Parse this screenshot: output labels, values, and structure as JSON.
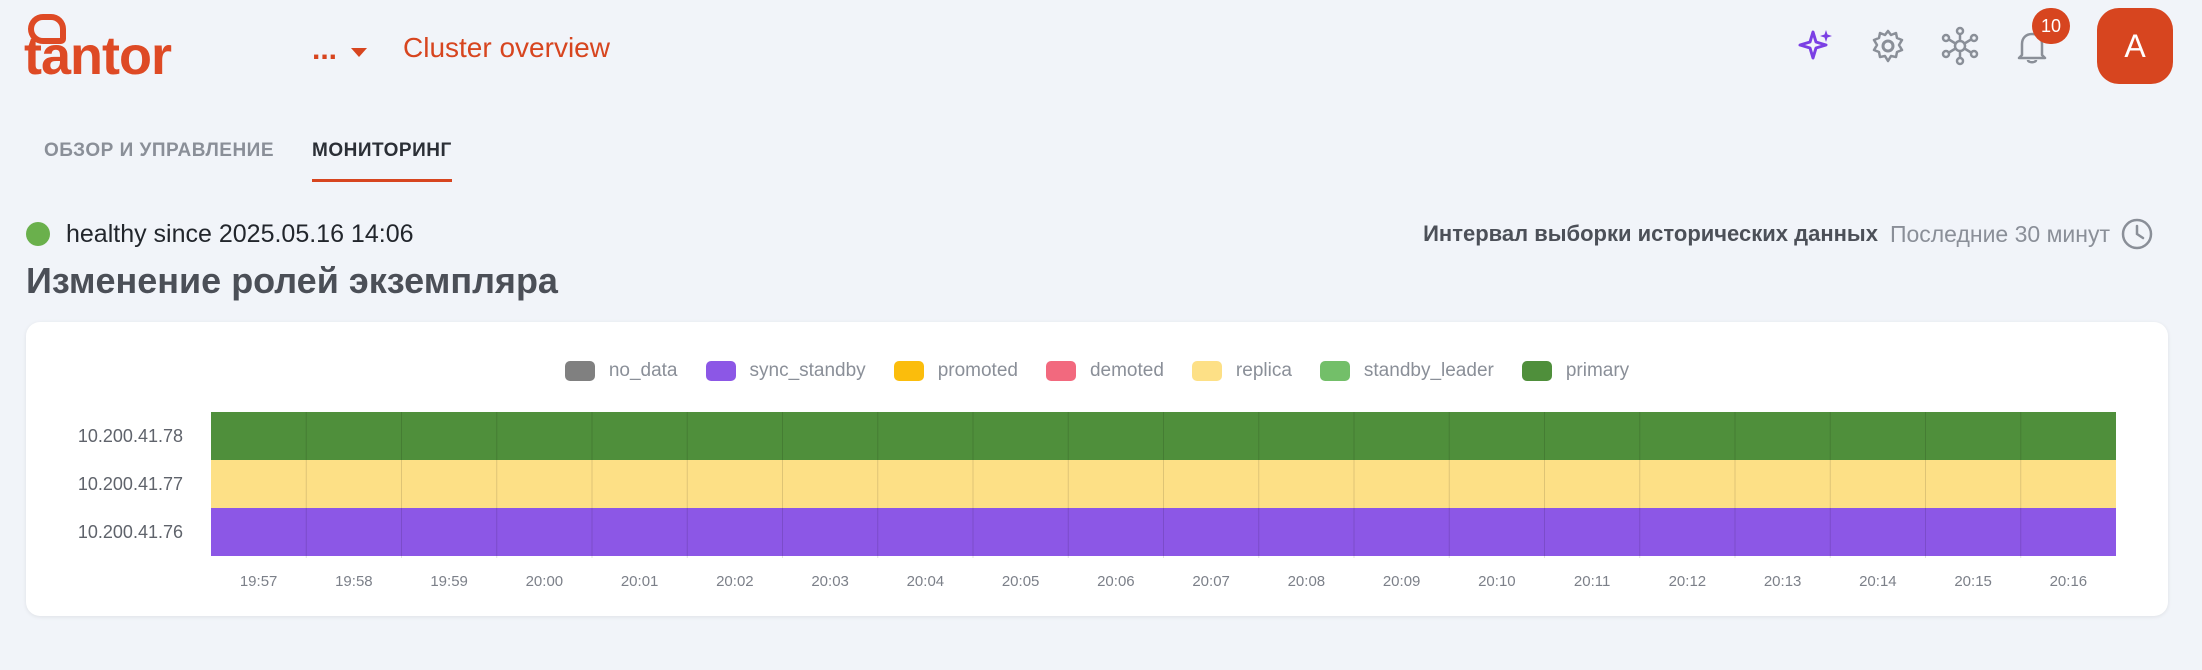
{
  "header": {
    "logo_text": "tantor",
    "cluster_menu_label": "...",
    "cluster_title": "Cluster overview",
    "notifications_count": "10",
    "avatar_initial": "A",
    "icons": [
      "sparkle-icon",
      "gear-icon",
      "network-icon",
      "bell-icon"
    ],
    "accent_color": "#d7451f",
    "ai_icon_color": "#7b3fe4"
  },
  "tabs": [
    {
      "label": "ОБЗОР И УПРАВЛЕНИЕ",
      "active": false
    },
    {
      "label": "МОНИТОРИНГ",
      "active": true
    }
  ],
  "status": {
    "text": "healthy since 2025.05.16 14:06",
    "color": "#6ab04c"
  },
  "interval": {
    "label": "Интервал выборки исторических данных",
    "value": "Последние 30 минут",
    "icon": "clock-icon"
  },
  "section_title": "Изменение ролей экземпляра",
  "chart_data": {
    "type": "heatmap",
    "legend": [
      {
        "name": "no_data",
        "color": "#808080"
      },
      {
        "name": "sync_standby",
        "color": "#8c57e6"
      },
      {
        "name": "promoted",
        "color": "#fbbd0c"
      },
      {
        "name": "demoted",
        "color": "#f2697e"
      },
      {
        "name": "replica",
        "color": "#fde086"
      },
      {
        "name": "standby_leader",
        "color": "#73bf69"
      },
      {
        "name": "primary",
        "color": "#4f8f3b"
      }
    ],
    "rows": [
      {
        "instance": "10.200.41.78",
        "role": "primary"
      },
      {
        "instance": "10.200.41.77",
        "role": "replica"
      },
      {
        "instance": "10.200.41.76",
        "role": "sync_standby"
      }
    ],
    "x_ticks": [
      "19:57",
      "19:58",
      "19:59",
      "20:00",
      "20:01",
      "20:02",
      "20:03",
      "20:04",
      "20:05",
      "20:06",
      "20:07",
      "20:08",
      "20:09",
      "20:10",
      "20:11",
      "20:12",
      "20:13",
      "20:14",
      "20:15",
      "20:16"
    ],
    "legend_position": "top"
  }
}
